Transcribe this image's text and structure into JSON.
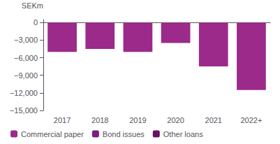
{
  "chart_data": {
    "type": "bar",
    "ylabel": "SEKm",
    "categories": [
      "2017",
      "2018",
      "2019",
      "2020",
      "2021",
      "2022+"
    ],
    "series": [
      {
        "name": "Commercial paper",
        "color": "#9b2a8a",
        "values": [
          -5000,
          -4500,
          -5000,
          -3500,
          -7500,
          -11500
        ]
      },
      {
        "name": "Bond issues",
        "color": "#7b1f7a",
        "values": [
          null,
          null,
          null,
          null,
          null,
          null
        ]
      },
      {
        "name": "Other loans",
        "color": "#6a1060",
        "values": [
          null,
          null,
          null,
          null,
          null,
          null
        ]
      }
    ],
    "ylim": [
      -15000,
      500
    ],
    "yticks": [
      0,
      {
        "value": -3000,
        "label": "−3,000"
      },
      {
        "value": -6000,
        "label": "−6,000"
      },
      {
        "value": -9000,
        "label": "−9,000"
      },
      {
        "value": -12000,
        "label": "−12,000"
      },
      {
        "value": -15000,
        "label": "−15,000"
      }
    ],
    "grid": false,
    "legend": "lower left"
  }
}
